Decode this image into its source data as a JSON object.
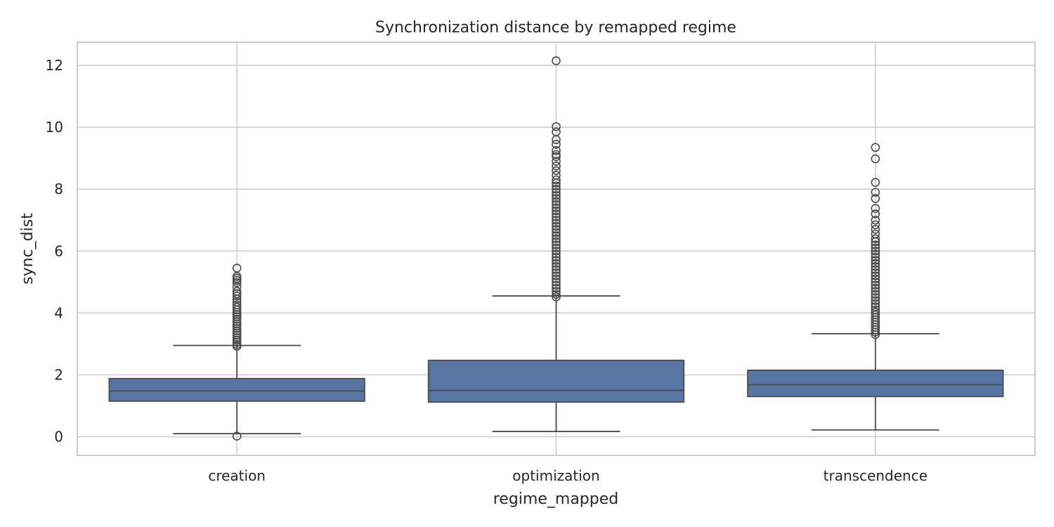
{
  "chart_data": {
    "type": "boxplot",
    "title": "Synchronization distance by remapped regime",
    "xlabel": "regime_mapped",
    "ylabel": "sync_dist",
    "ylim": [
      -0.6,
      12.75
    ],
    "yticks": [
      0,
      2,
      4,
      6,
      8,
      10,
      12
    ],
    "grid": true,
    "colors": {
      "box_fill": "#5875a4",
      "line": "#4a4a4a",
      "grid": "#cccccc",
      "frame": "#cccccc"
    },
    "categories": [
      "creation",
      "optimization",
      "transcendence"
    ],
    "boxes": [
      {
        "name": "creation",
        "whisker_low": 0.1,
        "q1": 1.15,
        "median": 1.48,
        "q3": 1.88,
        "whisker_high": 2.95,
        "outliers": [
          0.02,
          2.92,
          2.98,
          3.05,
          3.12,
          3.2,
          3.28,
          3.35,
          3.42,
          3.5,
          3.58,
          3.65,
          3.72,
          3.8,
          3.88,
          3.95,
          4.02,
          4.1,
          4.18,
          4.26,
          4.35,
          4.45,
          4.55,
          4.62,
          4.7,
          4.85,
          4.98,
          5.05,
          5.12,
          5.18,
          5.45
        ]
      },
      {
        "name": "optimization",
        "whisker_low": 0.17,
        "q1": 1.12,
        "median": 1.5,
        "q3": 2.47,
        "whisker_high": 4.55,
        "outliers": [
          4.52,
          4.6,
          4.7,
          4.8,
          4.9,
          5.0,
          5.1,
          5.2,
          5.3,
          5.4,
          5.5,
          5.6,
          5.7,
          5.8,
          5.9,
          6.0,
          6.1,
          6.2,
          6.3,
          6.4,
          6.5,
          6.6,
          6.7,
          6.8,
          6.9,
          7.0,
          7.1,
          7.2,
          7.3,
          7.4,
          7.5,
          7.6,
          7.7,
          7.8,
          7.9,
          8.0,
          8.1,
          8.2,
          8.3,
          8.45,
          8.6,
          8.75,
          8.9,
          9.05,
          9.12,
          9.25,
          9.45,
          9.6,
          9.85,
          10.02,
          12.15
        ]
      },
      {
        "name": "transcendence",
        "whisker_low": 0.22,
        "q1": 1.3,
        "median": 1.68,
        "q3": 2.15,
        "whisker_high": 3.33,
        "outliers": [
          3.3,
          3.38,
          3.46,
          3.54,
          3.62,
          3.7,
          3.78,
          3.86,
          3.94,
          4.02,
          4.1,
          4.2,
          4.3,
          4.4,
          4.5,
          4.6,
          4.7,
          4.8,
          4.9,
          5.0,
          5.1,
          5.2,
          5.3,
          5.4,
          5.5,
          5.6,
          5.7,
          5.8,
          5.9,
          6.0,
          6.1,
          6.2,
          6.3,
          6.4,
          6.55,
          6.7,
          6.85,
          7.0,
          7.2,
          7.38,
          7.7,
          7.9,
          8.22,
          8.98,
          9.35
        ]
      }
    ]
  }
}
